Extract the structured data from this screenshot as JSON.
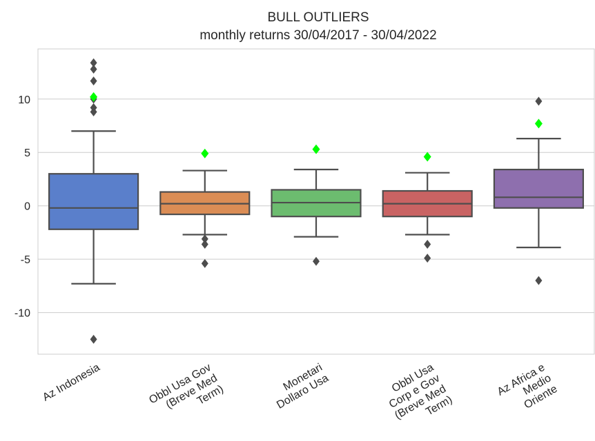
{
  "chart_data": {
    "type": "box",
    "title": "BULL OUTLIERS",
    "subtitle": "monthly returns 30/04/2017 - 30/04/2022",
    "xlabel": "",
    "ylabel": "",
    "ylim": [
      -13.9,
      14.7
    ],
    "yticks": [
      -10,
      -5,
      0,
      5,
      10
    ],
    "ytick_labels": [
      "-10",
      "-5",
      "0",
      "5",
      "10"
    ],
    "grid": "horizontal",
    "legend": "none",
    "box_edge_color": "#4d4d4d",
    "highlight_color": "#00ff00",
    "categories": [
      {
        "label_lines": [
          "Az Indonesia"
        ],
        "color": "#5a7fcb",
        "q1": -2.2,
        "median": -0.2,
        "q3": 3.0,
        "whisker_low": -7.3,
        "whisker_high": 7.0,
        "outliers": [
          13.4,
          12.8,
          11.7,
          10.2,
          10.0,
          9.2,
          8.8,
          -12.5
        ],
        "highlight": [
          10.2
        ]
      },
      {
        "label_lines": [
          "Obbl Usa Gov",
          "(Breve Med",
          "Term)"
        ],
        "color": "#db8d55",
        "q1": -0.8,
        "median": 0.2,
        "q3": 1.3,
        "whisker_low": -2.7,
        "whisker_high": 3.3,
        "outliers": [
          -3.1,
          -3.6,
          -5.4
        ],
        "highlight": [
          4.9
        ]
      },
      {
        "label_lines": [
          "Monetari",
          "Dollaro Usa"
        ],
        "color": "#6cbc6f",
        "q1": -1.0,
        "median": 0.3,
        "q3": 1.5,
        "whisker_low": -2.9,
        "whisker_high": 3.4,
        "outliers": [
          -5.2
        ],
        "highlight": [
          5.3
        ]
      },
      {
        "label_lines": [
          "Obbl Usa",
          "Corp e Gov",
          "(Breve Med",
          "Term)"
        ],
        "color": "#c96363",
        "q1": -1.0,
        "median": 0.2,
        "q3": 1.4,
        "whisker_low": -2.7,
        "whisker_high": 3.1,
        "outliers": [
          -3.6,
          -4.9
        ],
        "highlight": [
          4.6
        ]
      },
      {
        "label_lines": [
          "Az Africa e",
          "Medio",
          "Oriente"
        ],
        "color": "#8e6fae",
        "q1": -0.2,
        "median": 0.8,
        "q3": 3.4,
        "whisker_low": -3.9,
        "whisker_high": 6.3,
        "outliers": [
          9.8,
          -7.0
        ],
        "highlight": [
          7.7
        ]
      }
    ]
  }
}
